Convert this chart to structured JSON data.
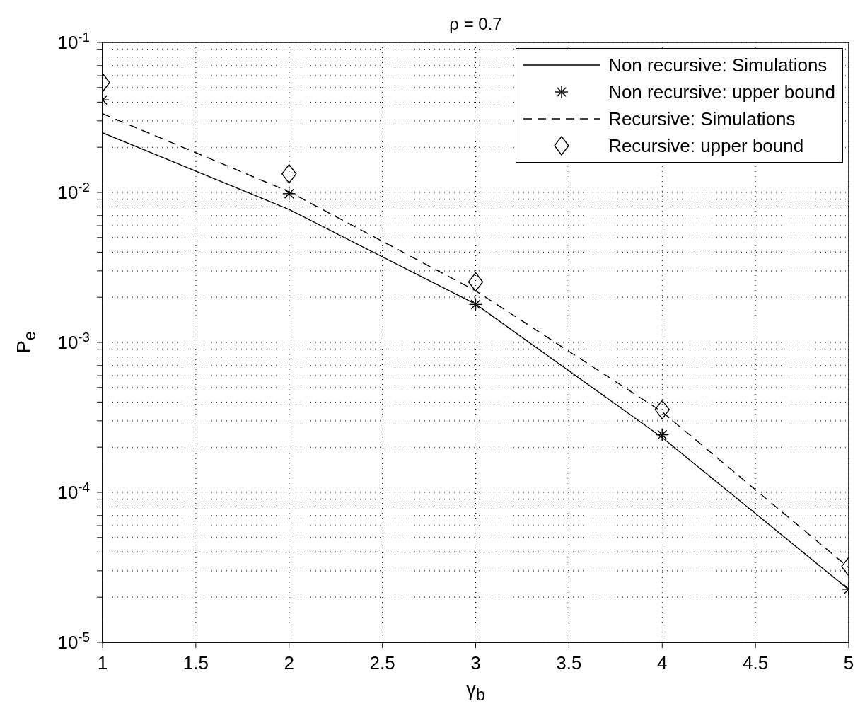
{
  "chart_data": {
    "type": "line",
    "title": "ρ = 0.7",
    "xlabel": "γ$_{b}$",
    "ylabel": "P$_{e}$",
    "x": [
      1,
      2,
      3,
      4,
      5
    ],
    "series": [
      {
        "name": "Non recursive: Simulations",
        "color": "#000000",
        "marker": "none",
        "line_style": "solid",
        "values": [
          0.025,
          0.0077,
          0.0018,
          0.000232,
          2.25e-05
        ]
      },
      {
        "name": "Non recursive: upper bound",
        "type": "scatter",
        "color": "#000000",
        "marker": "cross",
        "values": [
          0.0414,
          0.0098,
          0.00179,
          0.000242,
          2.26e-05
        ]
      },
      {
        "name": "Recursive: Simulations",
        "color": "#000000",
        "marker": "none",
        "line_style": "dashed",
        "values": [
          0.0335,
          0.0101,
          0.00221,
          0.000344,
          3.15e-05
        ]
      },
      {
        "name": "Recursive: upper bound",
        "type": "scatter",
        "color": "#000000",
        "marker": "diamond",
        "values": [
          0.054,
          0.0133,
          0.00253,
          0.000356,
          3.2e-05
        ]
      }
    ],
    "log": "y",
    "xlim": [
      1,
      5
    ],
    "xticks": [
      1,
      1.5,
      2,
      2.5,
      3,
      3.5,
      4,
      4.5,
      5
    ],
    "ylim": [
      1e-05,
      0.1
    ],
    "yticks": [
      {
        "value": 0.1,
        "label": "10$^{-1}$"
      },
      {
        "value": 0.09,
        "label": null
      },
      {
        "value": 0.08,
        "label": null
      },
      {
        "value": 0.07,
        "label": null
      },
      {
        "value": 0.06,
        "label": null
      },
      {
        "value": 0.05,
        "label": null
      },
      {
        "value": 0.04,
        "label": null
      },
      {
        "value": 0.03,
        "label": null
      },
      {
        "value": 0.02,
        "label": null
      },
      {
        "value": 0.01,
        "label": "10$^{-2}$"
      },
      {
        "value": 0.009,
        "label": null
      },
      {
        "value": 0.008,
        "label": null
      },
      {
        "value": 0.007,
        "label": null
      },
      {
        "value": 0.006,
        "label": null
      },
      {
        "value": 0.005,
        "label": null
      },
      {
        "value": 0.004,
        "label": null
      },
      {
        "value": 0.003,
        "label": null
      },
      {
        "value": 0.002,
        "label": null
      },
      {
        "value": 0.001,
        "label": "10$^{-3}$"
      },
      {
        "value": 0.0009,
        "label": null
      },
      {
        "value": 0.0008,
        "label": null
      },
      {
        "value": 0.0007,
        "label": null
      },
      {
        "value": 0.0006,
        "label": null
      },
      {
        "value": 0.0005,
        "label": null
      },
      {
        "value": 0.0004,
        "label": null
      },
      {
        "value": 0.0003,
        "label": null
      },
      {
        "value": 0.0002,
        "label": null
      },
      {
        "value": 0.0001,
        "label": "10$^{-4}$"
      },
      {
        "value": 9e-05,
        "label": null
      },
      {
        "value": 8e-05,
        "label": null
      },
      {
        "value": 7e-05,
        "label": null
      },
      {
        "value": 6e-05,
        "label": null
      },
      {
        "value": 5e-05,
        "label": null
      },
      {
        "value": 4e-05,
        "label": null
      },
      {
        "value": 3e-05,
        "label": null
      },
      {
        "value": 2e-05,
        "label": null
      },
      {
        "value": 1e-05,
        "label": "10$^{-5}$"
      }
    ],
    "grid": true,
    "legend": "top right"
  }
}
